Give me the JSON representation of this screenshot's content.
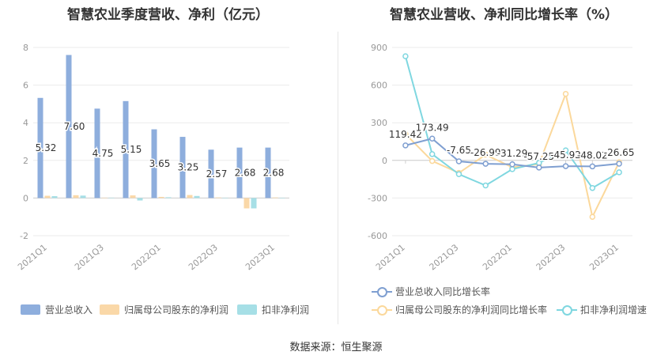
{
  "colors": {
    "revenue": "#8eaedd",
    "net_profit": "#fad8a8",
    "deducted_profit": "#a6dfe6",
    "revenue_line": "#7f9fd1",
    "net_profit_line": "#fbd89b",
    "deducted_line": "#7fd7e0",
    "grid": "#ebebeb",
    "axis_text": "#999999"
  },
  "chart_data": [
    {
      "type": "bar",
      "title": "智慧农业季度营收、净利（亿元）",
      "categories": [
        "2021Q1",
        "2021Q2",
        "2021Q3",
        "2021Q4",
        "2022Q1",
        "2022Q2",
        "2022Q3",
        "2022Q4",
        "2023Q1"
      ],
      "x_tick_labels": [
        "2021Q1",
        "2021Q3",
        "2022Q1",
        "2022Q3",
        "2023Q1"
      ],
      "ylim": [
        -2,
        8
      ],
      "y_ticks": [
        -2,
        0,
        2,
        4,
        6,
        8
      ],
      "grid": true,
      "legend_position": "bottom",
      "series": [
        {
          "name": "营业总收入",
          "values": [
            5.32,
            7.6,
            4.75,
            5.15,
            3.65,
            3.25,
            2.57,
            2.68,
            2.68
          ],
          "data_labels": [
            "5.32",
            "7.60",
            "4.75",
            "5.15",
            "3.65",
            "3.25",
            "2.57",
            "2.68",
            "2.68"
          ]
        },
        {
          "name": "归属母公司股东的净利润",
          "values": [
            0.12,
            0.15,
            0.02,
            0.14,
            0.06,
            0.16,
            0.03,
            -0.55,
            0.03
          ]
        },
        {
          "name": "扣非净利润",
          "values": [
            0.1,
            0.13,
            0.02,
            -0.13,
            0.04,
            0.11,
            0.01,
            -0.55,
            0.01
          ]
        }
      ]
    },
    {
      "type": "line",
      "title": "智慧农业营收、净利同比增长率（%）",
      "categories": [
        "2021Q1",
        "2021Q2",
        "2021Q3",
        "2021Q4",
        "2022Q1",
        "2022Q2",
        "2022Q3",
        "2022Q4",
        "2023Q1"
      ],
      "x_tick_labels": [
        "2021Q1",
        "2021Q3",
        "2022Q1",
        "2022Q3",
        "2023Q1"
      ],
      "ylim": [
        -600,
        900
      ],
      "y_ticks": [
        -600,
        -300,
        0,
        300,
        600,
        900
      ],
      "grid": true,
      "legend_position": "bottom",
      "series": [
        {
          "name": "营业总收入同比增长率",
          "values": [
            119.42,
            173.49,
            -7.65,
            -26.99,
            -31.29,
            -57.25,
            -45.92,
            -48.02,
            -26.65
          ],
          "data_labels": [
            "119.42",
            "173.49",
            "-7.65",
            "-26.99",
            "-31.29",
            "-57.25",
            "-45.92",
            "-48.02",
            "-26.65"
          ]
        },
        {
          "name": "归属母公司股东的净利润同比增长率",
          "values": [
            210,
            -5,
            -100,
            45,
            -55,
            -30,
            530,
            -450,
            -15
          ]
        },
        {
          "name": "扣非净利润增速",
          "values": [
            830,
            50,
            -110,
            -200,
            -70,
            -20,
            80,
            -220,
            -95
          ]
        }
      ]
    }
  ],
  "footer": {
    "source": "数据来源：恒生聚源"
  }
}
